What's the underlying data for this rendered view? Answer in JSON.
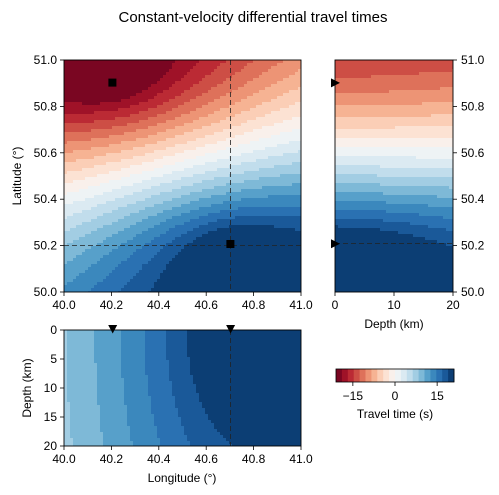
{
  "figure": {
    "title": "Constant-velocity differential travel times"
  },
  "chart_data": [
    {
      "type": "heatmap",
      "panel": "map",
      "xlabel": "",
      "ylabel": "Latitude (°)",
      "xlim": [
        40.0,
        41.0
      ],
      "ylim": [
        50.0,
        51.0
      ],
      "xticks": [
        "40.0",
        "40.2",
        "40.4",
        "40.6",
        "40.8",
        "41.0"
      ],
      "yticks": [
        "50.0",
        "50.2",
        "50.4",
        "50.6",
        "50.8",
        "51.0"
      ],
      "grid": false,
      "markers": [
        {
          "name": "station-a",
          "lon": 40.2,
          "lat": 50.9,
          "shape": "square"
        },
        {
          "name": "station-b",
          "lon": 40.7,
          "lat": 50.2,
          "shape": "square"
        }
      ],
      "crosshair": {
        "lon": 40.7,
        "lat": 50.2
      }
    },
    {
      "type": "heatmap",
      "panel": "latitude-depth",
      "xlabel": "Depth (km)",
      "ylabel": "",
      "xlim": [
        0,
        20
      ],
      "ylim": [
        50.0,
        51.0
      ],
      "xticks": [
        "0",
        "10",
        "20"
      ],
      "yticks": [
        "50.0",
        "50.2",
        "50.4",
        "50.6",
        "50.8",
        "51.0"
      ],
      "markers": [
        {
          "name": "station-a",
          "depth": 0,
          "lat": 50.9,
          "shape": "triangle-right"
        },
        {
          "name": "station-b",
          "depth": 0,
          "lat": 50.2,
          "shape": "triangle-right"
        }
      ],
      "crosshair": {
        "lat": 50.2
      }
    },
    {
      "type": "heatmap",
      "panel": "longitude-depth",
      "xlabel": "Longitude (°)",
      "ylabel": "Depth (km)",
      "xlim": [
        40.0,
        41.0
      ],
      "ylim": [
        20,
        0
      ],
      "xticks": [
        "40.0",
        "40.2",
        "40.4",
        "40.6",
        "40.8",
        "41.0"
      ],
      "yticks": [
        "0",
        "5",
        "10",
        "15",
        "20"
      ],
      "markers": [
        {
          "name": "station-a",
          "lon": 40.2,
          "depth": 0,
          "shape": "triangle-down"
        },
        {
          "name": "station-b",
          "lon": 40.7,
          "depth": 0,
          "shape": "triangle-down"
        }
      ],
      "crosshair": {
        "lon": 40.7
      }
    }
  ],
  "colorbar": {
    "label": "Travel time (s)",
    "ticks": [
      "−15",
      "0",
      "15"
    ],
    "tick_values": [
      -15,
      0,
      15
    ],
    "range": [
      -21,
      21
    ],
    "levels": 20,
    "colormap": "RdBu",
    "colors": [
      "#67001f",
      "#b2182b",
      "#d6604d",
      "#f4a582",
      "#fddbc7",
      "#f7f7f7",
      "#d1e5f0",
      "#92c5de",
      "#4393c3",
      "#2166ac",
      "#053061"
    ]
  }
}
